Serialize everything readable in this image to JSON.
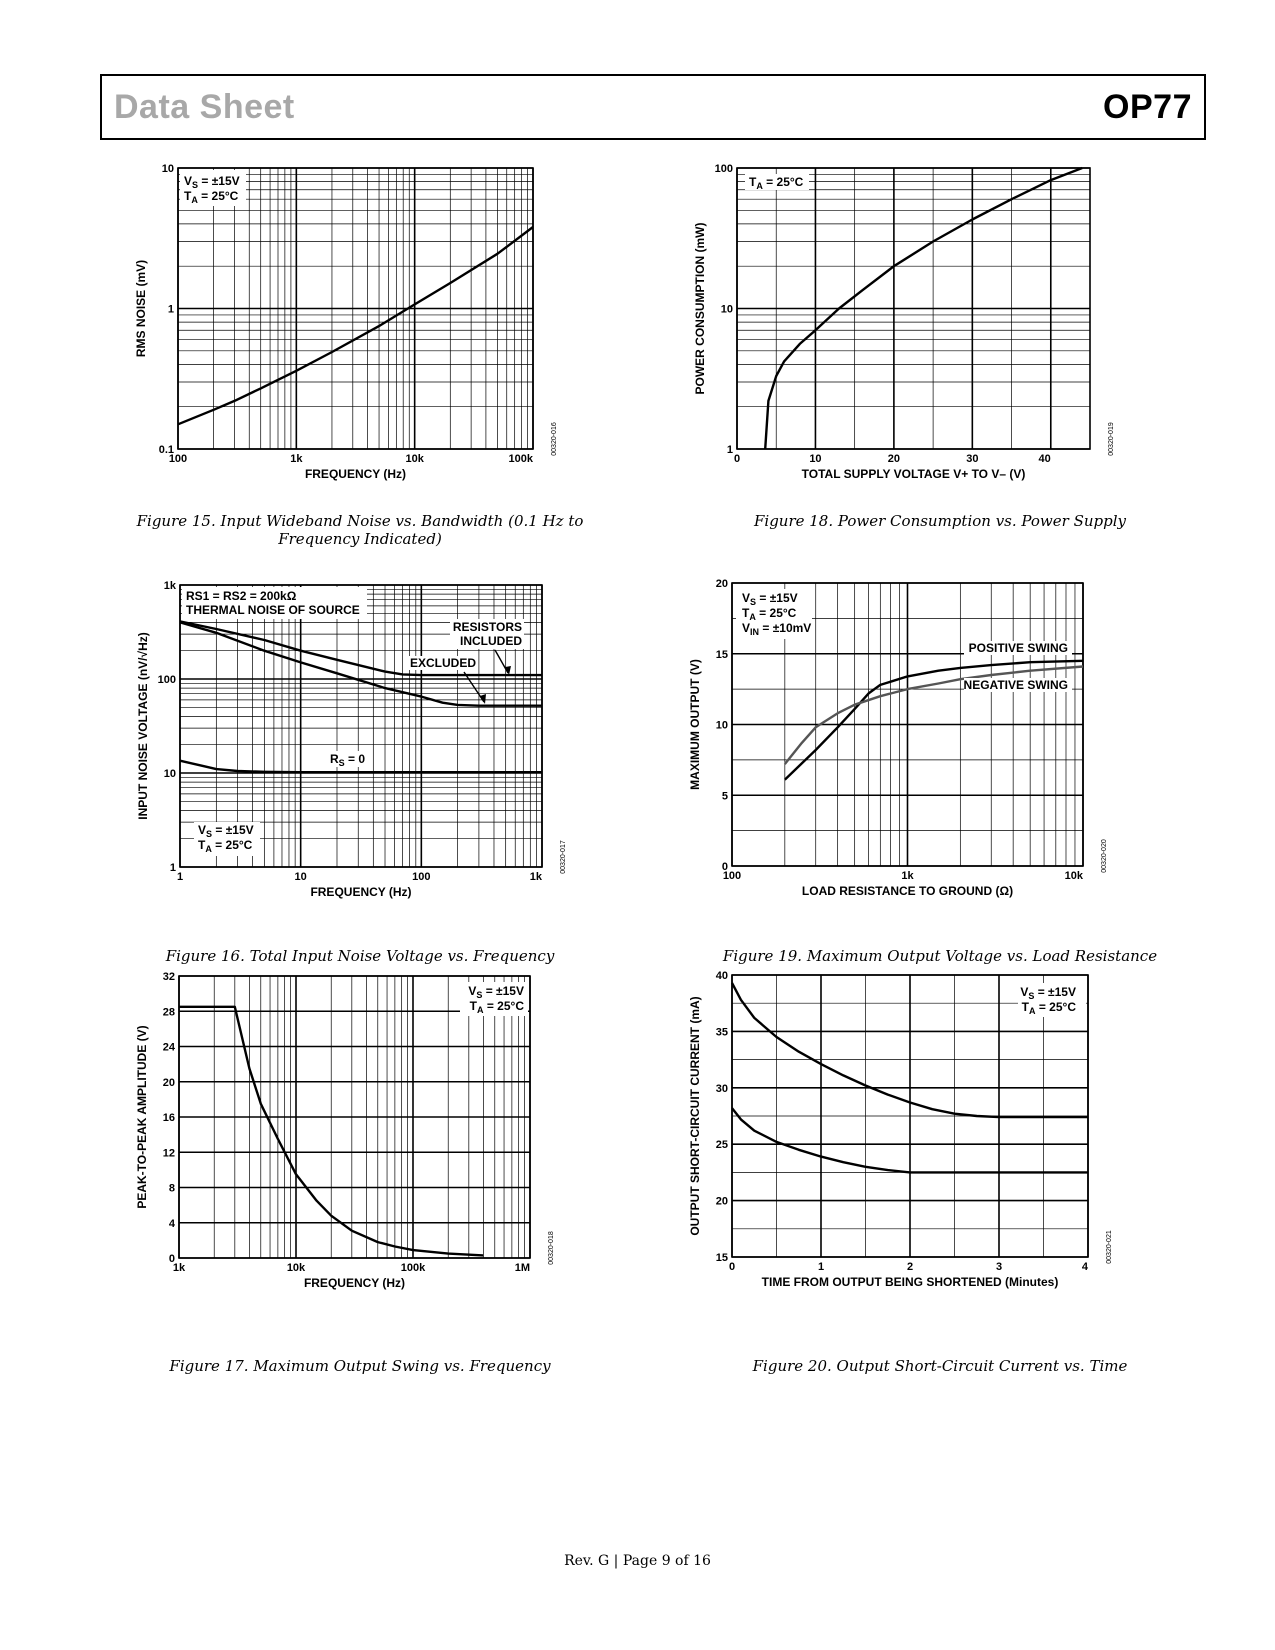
{
  "header": {
    "left": "Data Sheet",
    "right": "OP77"
  },
  "footer": "Rev. G | Page 9 of 16",
  "chart_data": [
    {
      "id": "fig15",
      "type": "line",
      "title": "Figure 15. Input Wideband Noise vs. Bandwidth (0.1 Hz to Frequency Indicated)",
      "xlabel": "FREQUENCY (Hz)",
      "ylabel": "RMS NOISE (mV)",
      "xscale": "log",
      "yscale": "log",
      "xlim": [
        100,
        100000
      ],
      "ylim": [
        0.1,
        10
      ],
      "xticks": [
        {
          "v": 100,
          "label": "100"
        },
        {
          "v": 1000,
          "label": "1k"
        },
        {
          "v": 10000,
          "label": "10k"
        },
        {
          "v": 100000,
          "label": "100k"
        }
      ],
      "yticks": [
        {
          "v": 0.1,
          "label": "0.1"
        },
        {
          "v": 1,
          "label": "1"
        },
        {
          "v": 10,
          "label": "10"
        }
      ],
      "code": "00320-016",
      "annotations": [
        {
          "main": "V",
          "sub": "S",
          "rest": " = ±15V",
          "pos": "top-left-1"
        },
        {
          "main": "T",
          "sub": "A",
          "rest": " = 25°C",
          "pos": "top-left-2"
        }
      ],
      "series": [
        {
          "name": "RMS noise",
          "color": "#000000",
          "x": [
            100,
            200,
            300,
            500,
            1000,
            2000,
            5000,
            10000,
            20000,
            50000,
            100000
          ],
          "y": [
            0.15,
            0.19,
            0.22,
            0.27,
            0.36,
            0.49,
            0.75,
            1.07,
            1.52,
            2.45,
            3.8
          ]
        }
      ]
    },
    {
      "id": "fig16",
      "type": "line",
      "title": "Figure 16. Total Input Noise Voltage vs. Frequency",
      "xlabel": "FREQUENCY (Hz)",
      "ylabel": "INPUT NOISE VOLTAGE (nV/√Hz)",
      "xscale": "log",
      "yscale": "log",
      "xlim": [
        1,
        1000
      ],
      "ylim": [
        1,
        1000
      ],
      "xticks": [
        {
          "v": 1,
          "label": "1"
        },
        {
          "v": 10,
          "label": "10"
        },
        {
          "v": 100,
          "label": "100"
        },
        {
          "v": 1000,
          "label": "1k"
        }
      ],
      "yticks": [
        {
          "v": 1,
          "label": "1"
        },
        {
          "v": 10,
          "label": "10"
        },
        {
          "v": 100,
          "label": "100"
        },
        {
          "v": 1000,
          "label": "1k"
        }
      ],
      "code": "00320-017",
      "annotations": [
        {
          "text": "RS1 = RS2 = 200kΩ"
        },
        {
          "text": "THERMAL NOISE OF SOURCE"
        },
        {
          "text": "RESISTORS"
        },
        {
          "text": "INCLUDED"
        },
        {
          "text": "EXCLUDED"
        },
        {
          "main": "R",
          "sub": "S",
          "rest": " = 0"
        },
        {
          "main": "V",
          "sub": "S",
          "rest": " = ±15V"
        },
        {
          "main": "T",
          "sub": "A",
          "rest": " = 25°C"
        }
      ],
      "series": [
        {
          "name": "Resistors included",
          "color": "#000000",
          "x": [
            1,
            2,
            5,
            10,
            20,
            50,
            70,
            100,
            200,
            500,
            1000
          ],
          "y": [
            410,
            340,
            260,
            200,
            160,
            120,
            112,
            110,
            110,
            110,
            110
          ]
        },
        {
          "name": "Resistors excluded",
          "color": "#000000",
          "x": [
            1,
            2,
            5,
            10,
            20,
            50,
            100,
            150,
            200,
            300,
            1000
          ],
          "y": [
            400,
            310,
            200,
            150,
            115,
            80,
            65,
            56,
            53,
            52,
            52
          ]
        },
        {
          "name": "RS = 0",
          "color": "#000000",
          "x": [
            1,
            1.5,
            2,
            3,
            5,
            10,
            100,
            1000
          ],
          "y": [
            13.5,
            12,
            11,
            10.5,
            10.3,
            10.2,
            10.2,
            10.2
          ]
        }
      ]
    },
    {
      "id": "fig17",
      "type": "line",
      "title": "Figure 17. Maximum Output Swing vs. Frequency",
      "xlabel": "FREQUENCY (Hz)",
      "ylabel": "PEAK-TO-PEAK AMPLITUDE (V)",
      "xscale": "log",
      "yscale": "linear",
      "xlim": [
        1000,
        1000000
      ],
      "ylim": [
        0,
        32
      ],
      "xticks": [
        {
          "v": 1000,
          "label": "1k"
        },
        {
          "v": 10000,
          "label": "10k"
        },
        {
          "v": 100000,
          "label": "100k"
        },
        {
          "v": 1000000,
          "label": "1M"
        }
      ],
      "yticks": [
        {
          "v": 0,
          "label": "0"
        },
        {
          "v": 4,
          "label": "4"
        },
        {
          "v": 8,
          "label": "8"
        },
        {
          "v": 12,
          "label": "12"
        },
        {
          "v": 16,
          "label": "16"
        },
        {
          "v": 20,
          "label": "20"
        },
        {
          "v": 24,
          "label": "24"
        },
        {
          "v": 28,
          "label": "28"
        },
        {
          "v": 32,
          "label": "32"
        }
      ],
      "code": "00320-018",
      "annotations": [
        {
          "main": "V",
          "sub": "S",
          "rest": " = ±15V"
        },
        {
          "main": "T",
          "sub": "A",
          "rest": " = 25°C"
        }
      ],
      "series": [
        {
          "name": "Output swing",
          "color": "#000000",
          "x": [
            1000,
            3000,
            4000,
            5000,
            7000,
            10000,
            15000,
            20000,
            30000,
            50000,
            70000,
            100000,
            200000,
            400000
          ],
          "y": [
            28.5,
            28.5,
            21.5,
            17.5,
            13.5,
            9.5,
            6.5,
            4.8,
            3.1,
            1.8,
            1.3,
            0.9,
            0.5,
            0.3
          ]
        }
      ]
    },
    {
      "id": "fig18",
      "type": "line",
      "title": "Figure 18. Power Consumption vs. Power Supply",
      "xlabel": "TOTAL SUPPLY VOLTAGE V+ TO V– (V)",
      "ylabel": "POWER CONSUMPTION (mW)",
      "xscale": "linear",
      "yscale": "log",
      "xlim": [
        0,
        45
      ],
      "ylim": [
        1,
        100
      ],
      "xticks": [
        {
          "v": 0,
          "label": "0"
        },
        {
          "v": 10,
          "label": "10"
        },
        {
          "v": 20,
          "label": "20"
        },
        {
          "v": 30,
          "label": "30"
        },
        {
          "v": 40,
          "label": "40"
        }
      ],
      "yticks": [
        {
          "v": 1,
          "label": "1"
        },
        {
          "v": 10,
          "label": "10"
        },
        {
          "v": 100,
          "label": "100"
        }
      ],
      "code": "00320-019",
      "annotations": [
        {
          "main": "T",
          "sub": "A",
          "rest": " = 25°C"
        }
      ],
      "series": [
        {
          "name": "Power consumption",
          "color": "#000000",
          "x": [
            3.6,
            4,
            5,
            6,
            8,
            10,
            13,
            16,
            20,
            25,
            30,
            35,
            40,
            44
          ],
          "y": [
            1,
            2.2,
            3.3,
            4.2,
            5.6,
            7,
            10,
            13.5,
            20,
            30,
            43,
            60,
            82,
            100
          ]
        }
      ]
    },
    {
      "id": "fig19",
      "type": "line",
      "title": "Figure 19. Maximum Output Voltage vs. Load Resistance",
      "xlabel": "LOAD RESISTANCE TO GROUND (Ω)",
      "ylabel": "MAXIMUM OUTPUT (V)",
      "xscale": "log",
      "yscale": "linear",
      "xlim": [
        100,
        10000
      ],
      "ylim": [
        0,
        20
      ],
      "xticks": [
        {
          "v": 100,
          "label": "100"
        },
        {
          "v": 1000,
          "label": "1k"
        },
        {
          "v": 10000,
          "label": "10k"
        }
      ],
      "yticks": [
        {
          "v": 0,
          "label": "0"
        },
        {
          "v": 5,
          "label": "5"
        },
        {
          "v": 10,
          "label": "10"
        },
        {
          "v": 15,
          "label": "15"
        },
        {
          "v": 20,
          "label": "20"
        }
      ],
      "code": "00320-020",
      "annotations": [
        {
          "main": "V",
          "sub": "S",
          "rest": " = ±15V"
        },
        {
          "main": "T",
          "sub": "A",
          "rest": " = 25°C"
        },
        {
          "main": "V",
          "sub": "IN",
          "rest": " = ±10mV"
        },
        {
          "text": "POSITIVE SWING"
        },
        {
          "text": "NEGATIVE SWING"
        }
      ],
      "series": [
        {
          "name": "Positive swing",
          "color": "#000000",
          "x": [
            200,
            300,
            400,
            500,
            600,
            700,
            1000,
            1500,
            2000,
            3000,
            5000,
            10000
          ],
          "y": [
            6.1,
            8.2,
            9.8,
            11.1,
            12.2,
            12.8,
            13.4,
            13.8,
            14.0,
            14.2,
            14.4,
            14.5
          ]
        },
        {
          "name": "Negative swing",
          "color": "#555555",
          "x": [
            200,
            250,
            300,
            400,
            500,
            700,
            1000,
            1500,
            2000,
            3000,
            5000,
            10000
          ],
          "y": [
            7.2,
            8.7,
            9.8,
            10.8,
            11.4,
            12.0,
            12.5,
            12.9,
            13.2,
            13.5,
            13.8,
            14.1
          ]
        }
      ]
    },
    {
      "id": "fig20",
      "type": "line",
      "title": "Figure 20. Output Short-Circuit Current vs. Time",
      "xlabel": "TIME FROM OUTPUT BEING SHORTENED (Minutes)",
      "ylabel": "OUTPUT SHORT-CIRCUIT CURRENT (mA)",
      "xscale": "linear",
      "yscale": "linear",
      "xlim": [
        0,
        4
      ],
      "ylim": [
        15,
        40
      ],
      "xticks": [
        {
          "v": 0,
          "label": "0"
        },
        {
          "v": 1,
          "label": "1"
        },
        {
          "v": 2,
          "label": "2"
        },
        {
          "v": 3,
          "label": "3"
        },
        {
          "v": 4,
          "label": "4"
        }
      ],
      "yticks": [
        {
          "v": 15,
          "label": "15"
        },
        {
          "v": 20,
          "label": "20"
        },
        {
          "v": 25,
          "label": "25"
        },
        {
          "v": 30,
          "label": "30"
        },
        {
          "v": 35,
          "label": "35"
        },
        {
          "v": 40,
          "label": "40"
        }
      ],
      "code": "00320-021",
      "annotations": [
        {
          "main": "V",
          "sub": "S",
          "rest": " = ±15V"
        },
        {
          "main": "T",
          "sub": "A",
          "rest": " = 25°C"
        }
      ],
      "series": [
        {
          "name": "Upper current",
          "color": "#000000",
          "x": [
            0,
            0.1,
            0.25,
            0.5,
            0.75,
            1,
            1.25,
            1.5,
            1.75,
            2,
            2.25,
            2.5,
            2.75,
            3,
            4
          ],
          "y": [
            39.3,
            37.8,
            36.2,
            34.5,
            33.2,
            32.1,
            31.1,
            30.2,
            29.4,
            28.7,
            28.1,
            27.7,
            27.5,
            27.4,
            27.4
          ]
        },
        {
          "name": "Lower current",
          "color": "#000000",
          "x": [
            0,
            0.1,
            0.25,
            0.5,
            0.75,
            1,
            1.25,
            1.5,
            1.75,
            2,
            2.5,
            3,
            4
          ],
          "y": [
            28.2,
            27.2,
            26.2,
            25.2,
            24.5,
            23.9,
            23.4,
            23.0,
            22.7,
            22.5,
            22.5,
            22.5,
            22.5
          ]
        }
      ]
    }
  ]
}
